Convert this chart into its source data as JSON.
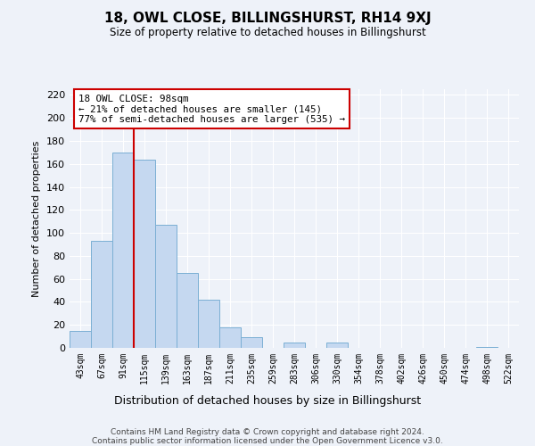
{
  "title": "18, OWL CLOSE, BILLINGSHURST, RH14 9XJ",
  "subtitle": "Size of property relative to detached houses in Billingshurst",
  "xlabel": "Distribution of detached houses by size in Billingshurst",
  "ylabel": "Number of detached properties",
  "footnote1": "Contains HM Land Registry data © Crown copyright and database right 2024.",
  "footnote2": "Contains public sector information licensed under the Open Government Licence v3.0.",
  "bar_labels": [
    "43sqm",
    "67sqm",
    "91sqm",
    "115sqm",
    "139sqm",
    "163sqm",
    "187sqm",
    "211sqm",
    "235sqm",
    "259sqm",
    "283sqm",
    "306sqm",
    "330sqm",
    "354sqm",
    "378sqm",
    "402sqm",
    "426sqm",
    "450sqm",
    "474sqm",
    "498sqm",
    "522sqm"
  ],
  "bar_values": [
    15,
    93,
    170,
    164,
    107,
    65,
    42,
    18,
    9,
    0,
    5,
    0,
    5,
    0,
    0,
    0,
    0,
    0,
    0,
    1,
    0
  ],
  "bar_color": "#c5d8f0",
  "bar_edge_color": "#7bafd4",
  "vline_color": "#cc0000",
  "vline_x": 2.5,
  "ylim": [
    0,
    225
  ],
  "yticks": [
    0,
    20,
    40,
    60,
    80,
    100,
    120,
    140,
    160,
    180,
    200,
    220
  ],
  "annotation_title": "18 OWL CLOSE: 98sqm",
  "annotation_line1": "← 21% of detached houses are smaller (145)",
  "annotation_line2": "77% of semi-detached houses are larger (535) →",
  "annotation_box_color": "#ffffff",
  "annotation_border_color": "#cc0000",
  "bg_color": "#eef2f9"
}
